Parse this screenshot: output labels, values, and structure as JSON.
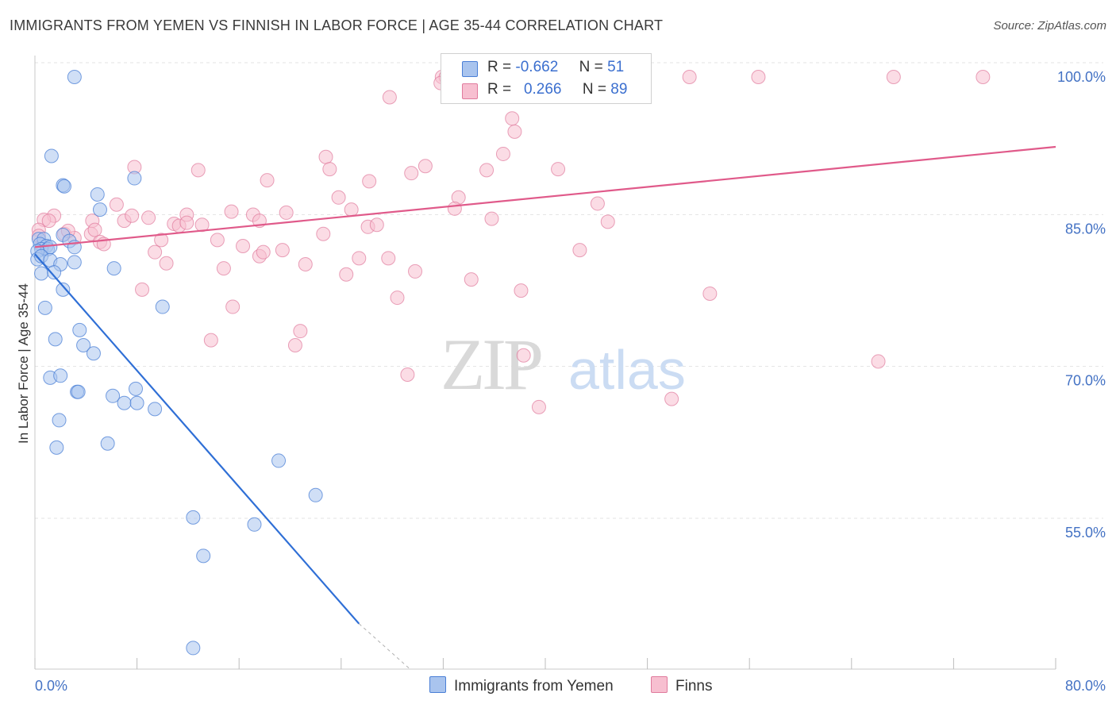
{
  "title": "IMMIGRANTS FROM YEMEN VS FINNISH IN LABOR FORCE | AGE 35-44 CORRELATION CHART",
  "source": "Source: ZipAtlas.com",
  "watermark": {
    "zip": "ZIP",
    "atlas": "atlas"
  },
  "legend": {
    "yemen": {
      "r_label": "R =",
      "r_value": "-0.662",
      "n_label": "N =",
      "n_value": "51"
    },
    "finns": {
      "r_label": "R =",
      "r_value": "0.266",
      "n_label": "N =",
      "n_value": "89"
    }
  },
  "bottom_legend": {
    "yemen": "Immigrants from Yemen",
    "finns": "Finns"
  },
  "colors": {
    "yemen_fill": "#a9c4ee",
    "yemen_stroke": "#4a7fd6",
    "yemen_line": "#2f6fd6",
    "finns_fill": "#f7bfd0",
    "finns_stroke": "#e07b9d",
    "finns_line": "#e05a8a",
    "tick_text": "#4472c4",
    "grid": "#e3e3e3"
  },
  "chart_data": {
    "type": "scatter",
    "title": "IMMIGRANTS FROM YEMEN VS FINNISH IN LABOR FORCE | AGE 35-44 CORRELATION CHART",
    "xlabel": "",
    "ylabel": "In Labor Force | Age 35-44",
    "xlim": [
      0,
      80
    ],
    "ylim": [
      40,
      101.5
    ],
    "x_tick_labels": [
      "0.0%",
      "80.0%"
    ],
    "y_ticks": [
      55,
      70,
      85,
      100
    ],
    "y_tick_labels": [
      "55.0%",
      "70.0%",
      "85.0%",
      "100.0%"
    ],
    "grid": true,
    "series": [
      {
        "name": "Immigrants from Yemen",
        "points": [
          [
            3.1,
            100
          ],
          [
            1.3,
            92.2
          ],
          [
            2.2,
            89.3
          ],
          [
            2.3,
            89.2
          ],
          [
            7.8,
            90
          ],
          [
            4.9,
            88.4
          ],
          [
            5.1,
            86.9
          ],
          [
            0.3,
            84
          ],
          [
            0.7,
            84
          ],
          [
            0.4,
            83.5
          ],
          [
            0.9,
            83.3
          ],
          [
            0.5,
            83
          ],
          [
            1,
            83
          ],
          [
            0.2,
            82.8
          ],
          [
            1.2,
            83.2
          ],
          [
            2.2,
            84.4
          ],
          [
            2.7,
            83.8
          ],
          [
            3.1,
            83.2
          ],
          [
            0.2,
            82
          ],
          [
            0.5,
            82.3
          ],
          [
            1.2,
            81.9
          ],
          [
            2,
            81.5
          ],
          [
            3.1,
            81.7
          ],
          [
            6.2,
            81.1
          ],
          [
            0.5,
            80.6
          ],
          [
            1.5,
            80.7
          ],
          [
            2.2,
            79
          ],
          [
            0.8,
            77.2
          ],
          [
            10,
            77.3
          ],
          [
            1.6,
            74.1
          ],
          [
            3.5,
            75
          ],
          [
            3.8,
            73.5
          ],
          [
            4.6,
            72.7
          ],
          [
            1.2,
            70.3
          ],
          [
            2,
            70.5
          ],
          [
            3.3,
            68.9
          ],
          [
            3.4,
            68.9
          ],
          [
            6.1,
            68.5
          ],
          [
            7,
            67.8
          ],
          [
            7.9,
            69.2
          ],
          [
            8,
            67.8
          ],
          [
            9.4,
            67.2
          ],
          [
            1.9,
            66.1
          ],
          [
            1.7,
            63.4
          ],
          [
            5.7,
            63.8
          ],
          [
            19.1,
            62.1
          ],
          [
            22,
            58.7
          ],
          [
            12.4,
            56.5
          ],
          [
            17.2,
            55.8
          ],
          [
            13.2,
            52.7
          ],
          [
            12.4,
            43.6
          ]
        ]
      },
      {
        "name": "Finns",
        "points": [
          [
            31.9,
            100
          ],
          [
            32.2,
            100
          ],
          [
            33.9,
            100
          ],
          [
            45.5,
            100
          ],
          [
            51.3,
            100
          ],
          [
            56.7,
            100
          ],
          [
            67.3,
            100
          ],
          [
            74.3,
            100
          ],
          [
            31.8,
            99.4
          ],
          [
            27.8,
            98
          ],
          [
            37.4,
            95.9
          ],
          [
            37.6,
            94.6
          ],
          [
            36.7,
            92.4
          ],
          [
            22.8,
            92.1
          ],
          [
            7.8,
            91.1
          ],
          [
            12.8,
            90.8
          ],
          [
            23.1,
            90.9
          ],
          [
            30.6,
            91.2
          ],
          [
            35.4,
            90.8
          ],
          [
            41,
            90.9
          ],
          [
            18.2,
            89.8
          ],
          [
            26.2,
            89.7
          ],
          [
            29.5,
            90.5
          ],
          [
            23.8,
            88.1
          ],
          [
            33.2,
            88.1
          ],
          [
            6.4,
            87.4
          ],
          [
            32.9,
            87
          ],
          [
            24.8,
            86.9
          ],
          [
            15.4,
            86.7
          ],
          [
            11.9,
            86.4
          ],
          [
            17.1,
            86.4
          ],
          [
            19.7,
            86.6
          ],
          [
            1.5,
            86.3
          ],
          [
            4.5,
            85.8
          ],
          [
            7,
            85.8
          ],
          [
            7.6,
            86.3
          ],
          [
            8.9,
            86.1
          ],
          [
            0.7,
            85.9
          ],
          [
            10.9,
            85.5
          ],
          [
            11.3,
            85.3
          ],
          [
            11.9,
            85.6
          ],
          [
            13.1,
            85.4
          ],
          [
            17.6,
            85.8
          ],
          [
            26.1,
            85.2
          ],
          [
            26.8,
            85.4
          ],
          [
            35.8,
            86
          ],
          [
            44.1,
            87.5
          ],
          [
            44.9,
            85.7
          ],
          [
            0.3,
            84.9
          ],
          [
            0.3,
            84.3
          ],
          [
            2.3,
            84.5
          ],
          [
            3.1,
            84.1
          ],
          [
            4.4,
            84.5
          ],
          [
            4.7,
            84.9
          ],
          [
            5.1,
            83.7
          ],
          [
            5.4,
            83.5
          ],
          [
            9.9,
            83.9
          ],
          [
            14.3,
            83.9
          ],
          [
            16.3,
            83.3
          ],
          [
            22.6,
            84.5
          ],
          [
            9.4,
            82.7
          ],
          [
            17.6,
            82.3
          ],
          [
            17.9,
            82.7
          ],
          [
            19.4,
            82.9
          ],
          [
            25.4,
            82.1
          ],
          [
            27.7,
            82.1
          ],
          [
            10.3,
            81.6
          ],
          [
            14.8,
            81.1
          ],
          [
            21.2,
            81.5
          ],
          [
            24.4,
            80.5
          ],
          [
            29.8,
            80.8
          ],
          [
            34.2,
            80
          ],
          [
            42.7,
            82.9
          ],
          [
            8.4,
            79
          ],
          [
            28.4,
            78.2
          ],
          [
            38.1,
            78.9
          ],
          [
            52.9,
            78.6
          ],
          [
            15.5,
            77.3
          ],
          [
            20.8,
            74.9
          ],
          [
            13.8,
            74
          ],
          [
            20.4,
            73.5
          ],
          [
            38.3,
            72.5
          ],
          [
            66.1,
            71.9
          ],
          [
            29.2,
            70.6
          ],
          [
            39.5,
            67.4
          ],
          [
            49.9,
            68.2
          ],
          [
            0.6,
            83.4
          ],
          [
            1.1,
            85.8
          ],
          [
            2.6,
            84.8
          ]
        ]
      }
    ],
    "trendlines": [
      {
        "series": "Immigrants from Yemen",
        "x1": 0,
        "y1": 82.5,
        "x2": 25.4,
        "y2": 46,
        "dash_to_x": 29.4,
        "dash_to_y": 40.2
      },
      {
        "series": "Finns",
        "x1": 0,
        "y1": 83.2,
        "x2": 80,
        "y2": 93.1
      }
    ]
  }
}
